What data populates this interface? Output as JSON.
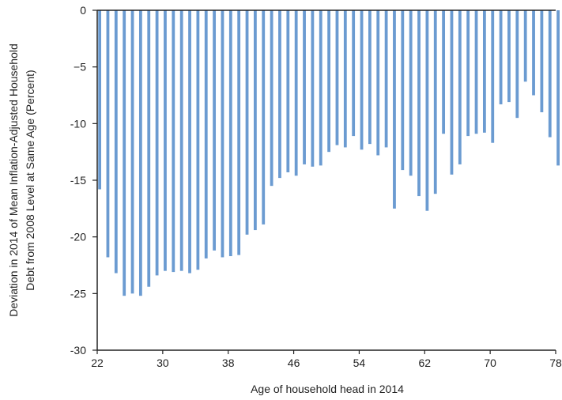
{
  "chart_data": {
    "type": "bar",
    "xlabel": "Age of household head in 2014",
    "ylabel_lines": [
      "Deviation in 2014 of Mean Inflation-Adjusted Household",
      "Debt from 2008 Level at Same Age (Percent)"
    ],
    "ylim": [
      -30,
      0
    ],
    "xlim": [
      22,
      78
    ],
    "y_ticks": [
      0,
      -5,
      -10,
      -15,
      -20,
      -25,
      -30
    ],
    "y_tick_labels": [
      "0",
      "−5",
      "-10",
      "-15",
      "-20",
      "-25",
      "-30"
    ],
    "x_ticks": [
      22,
      30,
      38,
      46,
      54,
      62,
      70,
      78
    ],
    "x_tick_labels": [
      "22",
      "30",
      "38",
      "46",
      "54",
      "62",
      "70",
      "78"
    ],
    "grid": false,
    "bar_color": "#6b9bd1",
    "x": [
      22,
      23,
      24,
      25,
      26,
      27,
      28,
      29,
      30,
      31,
      32,
      33,
      34,
      35,
      36,
      37,
      38,
      39,
      40,
      41,
      42,
      43,
      44,
      45,
      46,
      47,
      48,
      49,
      50,
      51,
      52,
      53,
      54,
      55,
      56,
      57,
      58,
      59,
      60,
      61,
      62,
      63,
      64,
      65,
      66,
      67,
      68,
      69,
      70,
      71,
      72,
      73,
      74,
      75,
      76,
      77,
      78
    ],
    "values": [
      -15.8,
      -21.8,
      -23.2,
      -25.2,
      -25.0,
      -25.2,
      -24.4,
      -23.4,
      -23.0,
      -23.1,
      -23.0,
      -23.2,
      -22.9,
      -21.9,
      -21.2,
      -21.8,
      -21.7,
      -21.6,
      -19.8,
      -19.4,
      -18.9,
      -15.5,
      -14.8,
      -14.3,
      -14.6,
      -13.6,
      -13.8,
      -13.7,
      -12.5,
      -11.9,
      -12.1,
      -11.1,
      -12.3,
      -11.8,
      -12.8,
      -12.1,
      -17.5,
      -14.1,
      -14.6,
      -16.4,
      -17.7,
      -16.2,
      -10.9,
      -14.5,
      -13.6,
      -11.1,
      -10.9,
      -10.8,
      -11.7,
      -8.3,
      -8.1,
      -9.5,
      -6.3,
      -7.5,
      -9.0,
      -11.2,
      -13.7
    ]
  }
}
